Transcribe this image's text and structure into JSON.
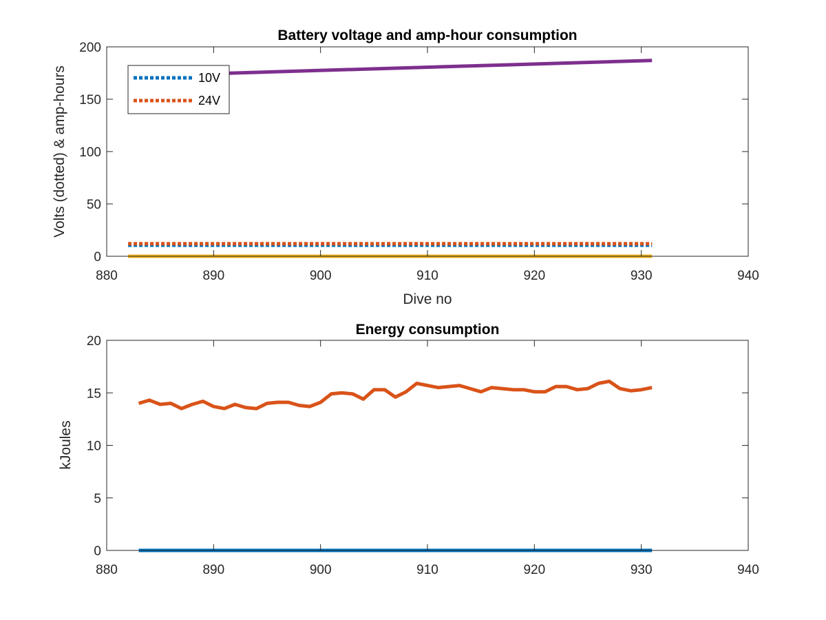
{
  "chart_data": [
    {
      "type": "line",
      "title": "Battery voltage and amp-hour consumption",
      "xlabel": "Dive no",
      "ylabel": "Volts (dotted) & amp-hours",
      "xlim": [
        880,
        940
      ],
      "ylim": [
        0,
        200
      ],
      "xticks": [
        880,
        890,
        900,
        910,
        920,
        930,
        940
      ],
      "yticks": [
        0,
        50,
        100,
        150,
        200
      ],
      "grid": false,
      "legend": {
        "position": "top-left",
        "entries": [
          {
            "label": "10V",
            "color": "#0072BD",
            "style": "dotted"
          },
          {
            "label": "24V",
            "color": "#D95319",
            "style": "dotted"
          }
        ]
      },
      "series": [
        {
          "name": "10V",
          "color": "#0072BD",
          "style": "dotted",
          "x": [
            882,
            931
          ],
          "y": [
            10.5,
            10.5
          ]
        },
        {
          "name": "24V",
          "color": "#D95319",
          "style": "dotted",
          "x": [
            882,
            931
          ],
          "y": [
            12,
            12
          ]
        },
        {
          "color": "#EDB120",
          "style": "solid",
          "x": [
            882,
            931
          ],
          "y": [
            0,
            0
          ]
        },
        {
          "color": "#7E2F8E",
          "style": "solid",
          "x": [
            882,
            931
          ],
          "y": [
            172,
            187
          ]
        }
      ]
    },
    {
      "type": "line",
      "title": "Energy consumption",
      "xlabel": "",
      "ylabel": "kJoules",
      "xlim": [
        880,
        940
      ],
      "ylim": [
        0,
        20
      ],
      "xticks": [
        880,
        890,
        900,
        910,
        920,
        930,
        940
      ],
      "yticks": [
        0,
        5,
        10,
        15,
        20
      ],
      "grid": false,
      "series": [
        {
          "color": "#0072BD",
          "style": "solid",
          "x": [
            883,
            931
          ],
          "y": [
            0,
            0
          ]
        },
        {
          "color": "#D95319",
          "style": "solid",
          "x": [
            883,
            884,
            885,
            886,
            887,
            888,
            889,
            890,
            891,
            892,
            893,
            894,
            895,
            896,
            897,
            898,
            899,
            900,
            901,
            902,
            903,
            904,
            905,
            906,
            907,
            908,
            909,
            910,
            911,
            912,
            913,
            914,
            915,
            916,
            917,
            918,
            919,
            920,
            921,
            922,
            923,
            924,
            925,
            926,
            927,
            928,
            929,
            930,
            931
          ],
          "y": [
            14.0,
            14.3,
            13.9,
            14.0,
            13.5,
            13.9,
            14.2,
            13.7,
            13.5,
            13.9,
            13.6,
            13.5,
            14.0,
            14.1,
            14.1,
            13.8,
            13.7,
            14.1,
            14.9,
            15.0,
            14.9,
            14.4,
            15.3,
            15.3,
            14.6,
            15.1,
            15.9,
            15.7,
            15.5,
            15.6,
            15.7,
            15.4,
            15.1,
            15.5,
            15.4,
            15.3,
            15.3,
            15.1,
            15.1,
            15.6,
            15.6,
            15.3,
            15.4,
            15.9,
            16.1,
            15.4,
            15.2,
            15.3,
            15.5
          ]
        }
      ]
    }
  ]
}
